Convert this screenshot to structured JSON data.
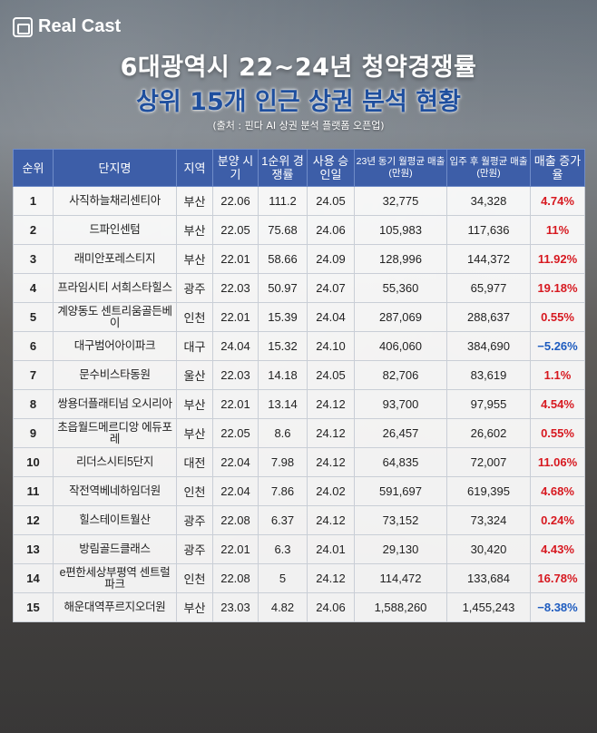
{
  "brand": {
    "name": "Real Cast"
  },
  "title": {
    "line1": "6대광역시 22~24년 청약경쟁률",
    "line2": "상위 15개 인근 상권 분석 현황",
    "source": "(출처 : 핀다 AI 상권 분석 플랫폼 오픈업)"
  },
  "table": {
    "headers": [
      "순위",
      "단지명",
      "지역",
      "분양 시기",
      "1순위 경쟁률",
      "사용 승인일",
      "23년 동기 월평균 매출(만원)",
      "입주 후 월평균 매출(만원)",
      "매출 증가율"
    ],
    "rows": [
      {
        "rank": "1",
        "name": "사직하늘채리센티아",
        "region": "부산",
        "sale": "22.06",
        "competition": "111.2",
        "approval": "24.05",
        "sales_2023": "32,775",
        "sales_after": "34,328",
        "growth": "4.74%",
        "direction": "up"
      },
      {
        "rank": "2",
        "name": "드파인센텀",
        "region": "부산",
        "sale": "22.05",
        "competition": "75.68",
        "approval": "24.06",
        "sales_2023": "105,983",
        "sales_after": "117,636",
        "growth": "11%",
        "direction": "up"
      },
      {
        "rank": "3",
        "name": "래미안포레스티지",
        "region": "부산",
        "sale": "22.01",
        "competition": "58.66",
        "approval": "24.09",
        "sales_2023": "128,996",
        "sales_after": "144,372",
        "growth": "11.92%",
        "direction": "up"
      },
      {
        "rank": "4",
        "name": "프라임시티 서희스타힐스",
        "region": "광주",
        "sale": "22.03",
        "competition": "50.97",
        "approval": "24.07",
        "sales_2023": "55,360",
        "sales_after": "65,977",
        "growth": "19.18%",
        "direction": "up"
      },
      {
        "rank": "5",
        "name": "계양동도 센트리움골든베이",
        "region": "인천",
        "sale": "22.01",
        "competition": "15.39",
        "approval": "24.04",
        "sales_2023": "287,069",
        "sales_after": "288,637",
        "growth": "0.55%",
        "direction": "up"
      },
      {
        "rank": "6",
        "name": "대구범어아이파크",
        "region": "대구",
        "sale": "24.04",
        "competition": "15.32",
        "approval": "24.10",
        "sales_2023": "406,060",
        "sales_after": "384,690",
        "growth": "−5.26%",
        "direction": "down"
      },
      {
        "rank": "7",
        "name": "문수비스타동원",
        "region": "울산",
        "sale": "22.03",
        "competition": "14.18",
        "approval": "24.05",
        "sales_2023": "82,706",
        "sales_after": "83,619",
        "growth": "1.1%",
        "direction": "up"
      },
      {
        "rank": "8",
        "name": "쌍용더플래티넘 오시리아",
        "region": "부산",
        "sale": "22.01",
        "competition": "13.14",
        "approval": "24.12",
        "sales_2023": "93,700",
        "sales_after": "97,955",
        "growth": "4.54%",
        "direction": "up"
      },
      {
        "rank": "9",
        "name": "초읍월드메르디앙 에듀포레",
        "region": "부산",
        "sale": "22.05",
        "competition": "8.6",
        "approval": "24.12",
        "sales_2023": "26,457",
        "sales_after": "26,602",
        "growth": "0.55%",
        "direction": "up"
      },
      {
        "rank": "10",
        "name": "리더스시티5단지",
        "region": "대전",
        "sale": "22.04",
        "competition": "7.98",
        "approval": "24.12",
        "sales_2023": "64,835",
        "sales_after": "72,007",
        "growth": "11.06%",
        "direction": "up"
      },
      {
        "rank": "11",
        "name": "작전역베네하임더원",
        "region": "인천",
        "sale": "22.04",
        "competition": "7.86",
        "approval": "24.02",
        "sales_2023": "591,697",
        "sales_after": "619,395",
        "growth": "4.68%",
        "direction": "up"
      },
      {
        "rank": "12",
        "name": "힐스테이트월산",
        "region": "광주",
        "sale": "22.08",
        "competition": "6.37",
        "approval": "24.12",
        "sales_2023": "73,152",
        "sales_after": "73,324",
        "growth": "0.24%",
        "direction": "up"
      },
      {
        "rank": "13",
        "name": "방림골드클래스",
        "region": "광주",
        "sale": "22.01",
        "competition": "6.3",
        "approval": "24.01",
        "sales_2023": "29,130",
        "sales_after": "30,420",
        "growth": "4.43%",
        "direction": "up"
      },
      {
        "rank": "14",
        "name": "e편한세상부평역 센트럴파크",
        "region": "인천",
        "sale": "22.08",
        "competition": "5",
        "approval": "24.12",
        "sales_2023": "114,472",
        "sales_after": "133,684",
        "growth": "16.78%",
        "direction": "up"
      },
      {
        "rank": "15",
        "name": "해운대역푸르지오더원",
        "region": "부산",
        "sale": "23.03",
        "competition": "4.82",
        "approval": "24.06",
        "sales_2023": "1,588,260",
        "sales_after": "1,455,243",
        "growth": "−8.38%",
        "direction": "down"
      }
    ]
  },
  "colors": {
    "header_bg": "#3d5ea8",
    "increase": "#d71920",
    "decrease": "#1d5bbf",
    "subtitle": "#1f4f9e"
  }
}
